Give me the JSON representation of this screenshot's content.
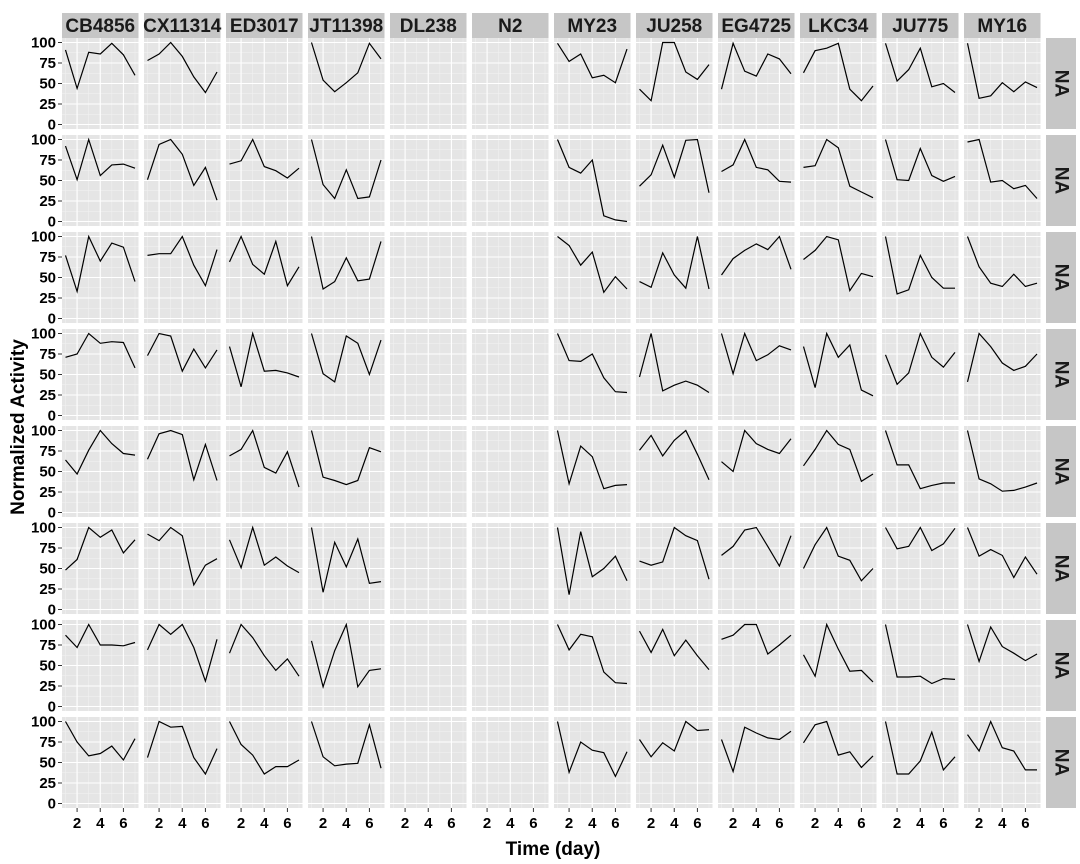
{
  "chart_data": {
    "type": "line",
    "layout": "facet_grid",
    "xlabel": "Time (day)",
    "ylabel": "Normalized Activity",
    "xlim": [
      1,
      7
    ],
    "ylim": [
      0,
      100
    ],
    "x_ticks": [
      2,
      4,
      6
    ],
    "y_ticks": [
      0,
      25,
      50,
      75,
      100
    ],
    "grid": true,
    "x": [
      1,
      2,
      3,
      4,
      5,
      6,
      7
    ],
    "columns": [
      "CB4856",
      "CX11314",
      "ED3017",
      "JT11398",
      "DL238",
      "N2",
      "MY23",
      "JU258",
      "EG4725",
      "LKC34",
      "JU775",
      "MY16"
    ],
    "row_label": "NA",
    "row_count": 8,
    "series": [
      [
        [
          91,
          44,
          88,
          86,
          99,
          85,
          60
        ],
        [
          78,
          86,
          100,
          83,
          58,
          39,
          64
        ],
        null,
        [
          100,
          54,
          40,
          51,
          63,
          99,
          80
        ],
        null,
        null,
        [
          99,
          77,
          86,
          57,
          60,
          51,
          92
        ],
        [
          43,
          29,
          100,
          100,
          64,
          55,
          73
        ],
        [
          43,
          99,
          65,
          59,
          86,
          80,
          62
        ],
        [
          63,
          90,
          93,
          99,
          43,
          29,
          47
        ],
        [
          99,
          53,
          67,
          93,
          46,
          50,
          39
        ],
        [
          99,
          32,
          35,
          51,
          40,
          52,
          45
        ]
      ],
      [
        [
          92,
          51,
          100,
          56,
          69,
          70,
          65
        ],
        [
          51,
          94,
          100,
          82,
          44,
          66,
          26
        ],
        [
          70,
          74,
          100,
          67,
          62,
          53,
          65
        ],
        [
          100,
          45,
          28,
          63,
          28,
          30,
          75
        ],
        null,
        null,
        [
          100,
          66,
          59,
          75,
          7,
          2,
          0
        ],
        [
          43,
          57,
          93,
          54,
          99,
          100,
          35
        ],
        [
          61,
          69,
          100,
          66,
          63,
          49,
          48
        ],
        [
          66,
          68,
          100,
          90,
          43,
          36,
          29
        ],
        [
          100,
          51,
          50,
          89,
          56,
          49,
          55
        ],
        [
          97,
          100,
          48,
          50,
          40,
          44,
          28
        ]
      ],
      [
        [
          77,
          33,
          100,
          70,
          92,
          87,
          45
        ],
        [
          77,
          79,
          79,
          100,
          65,
          40,
          84
        ],
        [
          69,
          100,
          66,
          54,
          94,
          40,
          63
        ],
        [
          100,
          36,
          45,
          74,
          46,
          48,
          94
        ],
        null,
        null,
        [
          100,
          89,
          65,
          81,
          32,
          51,
          36
        ],
        [
          45,
          38,
          80,
          53,
          37,
          100,
          36
        ],
        [
          53,
          73,
          83,
          91,
          84,
          100,
          60
        ],
        [
          72,
          83,
          100,
          96,
          34,
          55,
          51
        ],
        [
          100,
          30,
          35,
          77,
          50,
          37,
          37
        ],
        [
          100,
          63,
          43,
          39,
          54,
          39,
          43
        ]
      ],
      [
        [
          71,
          75,
          100,
          88,
          90,
          89,
          58
        ],
        [
          73,
          100,
          97,
          54,
          81,
          58,
          80
        ],
        [
          84,
          35,
          100,
          54,
          55,
          52,
          47
        ],
        [
          100,
          51,
          41,
          97,
          88,
          50,
          92
        ],
        null,
        null,
        [
          100,
          67,
          66,
          75,
          46,
          29,
          28
        ],
        [
          47,
          100,
          30,
          37,
          42,
          37,
          28
        ],
        [
          100,
          51,
          100,
          67,
          74,
          85,
          80
        ],
        [
          84,
          34,
          100,
          71,
          86,
          31,
          24
        ],
        [
          74,
          38,
          52,
          100,
          71,
          59,
          77
        ],
        [
          41,
          100,
          84,
          64,
          55,
          60,
          75
        ]
      ],
      [
        [
          64,
          47,
          76,
          100,
          84,
          72,
          70
        ],
        [
          65,
          96,
          100,
          95,
          40,
          83,
          39
        ],
        [
          69,
          77,
          100,
          55,
          48,
          74,
          31
        ],
        [
          100,
          43,
          39,
          34,
          39,
          79,
          74
        ],
        null,
        null,
        [
          100,
          35,
          81,
          68,
          29,
          33,
          34
        ],
        [
          76,
          94,
          69,
          88,
          100,
          71,
          40
        ],
        [
          62,
          50,
          100,
          84,
          77,
          72,
          90
        ],
        [
          57,
          77,
          100,
          83,
          77,
          38,
          47
        ],
        [
          100,
          58,
          58,
          29,
          33,
          36,
          36
        ],
        [
          100,
          41,
          35,
          26,
          27,
          31,
          36
        ]
      ],
      [
        [
          48,
          61,
          100,
          88,
          97,
          69,
          85
        ],
        [
          92,
          84,
          100,
          90,
          30,
          54,
          62
        ],
        [
          85,
          51,
          100,
          54,
          64,
          53,
          45
        ],
        [
          100,
          21,
          82,
          52,
          86,
          32,
          34
        ],
        null,
        null,
        [
          100,
          18,
          95,
          40,
          50,
          65,
          35
        ],
        [
          59,
          54,
          58,
          100,
          90,
          84,
          37
        ],
        [
          66,
          77,
          97,
          100,
          77,
          53,
          90
        ],
        [
          50,
          79,
          100,
          65,
          60,
          35,
          50
        ],
        [
          100,
          74,
          77,
          100,
          72,
          80,
          99
        ],
        [
          100,
          65,
          73,
          66,
          39,
          64,
          43
        ]
      ],
      [
        [
          87,
          72,
          100,
          75,
          75,
          74,
          78
        ],
        [
          69,
          100,
          88,
          100,
          72,
          31,
          82
        ],
        [
          65,
          100,
          84,
          62,
          44,
          58,
          37
        ],
        [
          80,
          24,
          68,
          100,
          24,
          44,
          46
        ],
        null,
        null,
        [
          100,
          69,
          88,
          85,
          42,
          29,
          28
        ],
        [
          92,
          66,
          94,
          62,
          81,
          62,
          45
        ],
        [
          82,
          87,
          100,
          100,
          64,
          75,
          87
        ],
        [
          63,
          37,
          100,
          70,
          43,
          44,
          30
        ],
        [
          100,
          36,
          36,
          37,
          28,
          34,
          33
        ],
        [
          100,
          55,
          97,
          73,
          65,
          56,
          64
        ]
      ],
      [
        [
          100,
          75,
          58,
          61,
          70,
          53,
          79
        ],
        [
          56,
          100,
          93,
          94,
          56,
          36,
          67
        ],
        [
          100,
          72,
          59,
          36,
          45,
          45,
          53
        ],
        [
          100,
          57,
          46,
          48,
          49,
          96,
          43
        ],
        null,
        null,
        [
          100,
          38,
          75,
          65,
          62,
          33,
          63
        ],
        [
          78,
          57,
          74,
          64,
          100,
          89,
          90
        ],
        [
          78,
          39,
          93,
          86,
          80,
          78,
          88
        ],
        [
          74,
          96,
          100,
          59,
          63,
          44,
          58
        ],
        [
          100,
          36,
          36,
          52,
          87,
          41,
          57
        ],
        [
          84,
          64,
          100,
          68,
          64,
          41,
          41
        ]
      ]
    ]
  }
}
